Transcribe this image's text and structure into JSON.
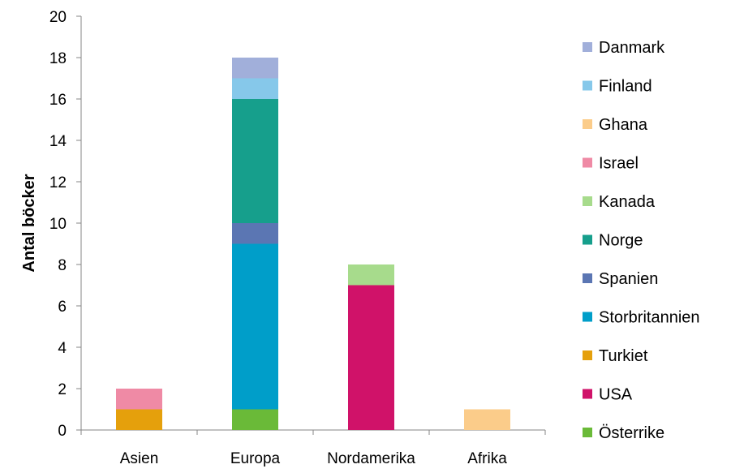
{
  "chart_data": {
    "type": "bar",
    "stacked": true,
    "title": "",
    "xlabel": "",
    "ylabel": "Antal böcker",
    "ylim": [
      0,
      20
    ],
    "yticks": [
      0,
      2,
      4,
      6,
      8,
      10,
      12,
      14,
      16,
      18,
      20
    ],
    "grid": false,
    "legend_position": "right",
    "categories": [
      "Asien",
      "Europa",
      "Nordamerika",
      "Afrika"
    ],
    "series": [
      {
        "name": "Österrike",
        "color": "#6aba38",
        "values": [
          0,
          1,
          0,
          0
        ]
      },
      {
        "name": "USA",
        "color": "#d01269",
        "values": [
          0,
          0,
          7,
          0
        ]
      },
      {
        "name": "Turkiet",
        "color": "#e5a00c",
        "values": [
          1,
          0,
          0,
          0
        ]
      },
      {
        "name": "Storbritannien",
        "color": "#009ec9",
        "values": [
          0,
          8,
          0,
          0
        ]
      },
      {
        "name": "Spanien",
        "color": "#5b76b3",
        "values": [
          0,
          1,
          0,
          0
        ]
      },
      {
        "name": "Norge",
        "color": "#169f8c",
        "values": [
          0,
          6,
          0,
          0
        ]
      },
      {
        "name": "Kanada",
        "color": "#a7db8c",
        "values": [
          0,
          0,
          1,
          0
        ]
      },
      {
        "name": "Israel",
        "color": "#ef8aa5",
        "values": [
          1,
          0,
          0,
          0
        ]
      },
      {
        "name": "Ghana",
        "color": "#fbcc8a",
        "values": [
          0,
          0,
          0,
          1
        ]
      },
      {
        "name": "Finland",
        "color": "#86c8ea",
        "values": [
          0,
          1,
          0,
          0
        ]
      },
      {
        "name": "Danmark",
        "color": "#a1afda",
        "values": [
          0,
          1,
          0,
          0
        ]
      }
    ]
  }
}
